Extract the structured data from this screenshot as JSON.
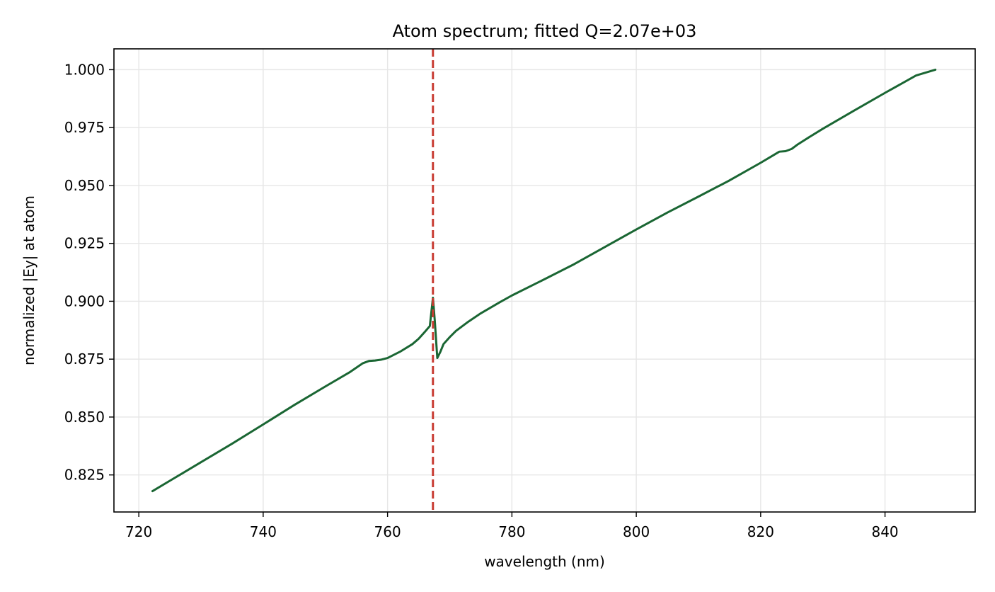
{
  "colors": {
    "series": "#1a6633",
    "marker_line": "#c83c32",
    "grid": "#e6e6e6",
    "axes": "#000000",
    "background": "#ffffff"
  },
  "chart_data": {
    "type": "line",
    "title": "Atom spectrum; fitted Q=2.07e+03",
    "xlabel": "wavelength (nm)",
    "ylabel": "normalized |Ey| at atom",
    "xlim": [
      716,
      854.5
    ],
    "ylim": [
      0.809,
      1.009
    ],
    "grid": true,
    "x_ticks": [
      720,
      740,
      760,
      780,
      800,
      820,
      840
    ],
    "x_tick_labels": [
      "720",
      "740",
      "760",
      "780",
      "800",
      "820",
      "840"
    ],
    "y_ticks": [
      0.825,
      0.85,
      0.875,
      0.9,
      0.925,
      0.95,
      0.975,
      1.0
    ],
    "y_tick_labels": [
      "0.825",
      "0.850",
      "0.875",
      "0.900",
      "0.925",
      "0.950",
      "0.975",
      "1.000"
    ],
    "vertical_line": {
      "x": 767.3,
      "style": "dashed"
    },
    "series": [
      {
        "x": [
          722.2,
          725,
          730,
          735,
          740,
          745,
          750,
          754,
          756,
          757,
          758,
          759,
          760,
          762,
          764,
          765,
          766,
          766.8,
          767.3,
          767.6,
          768,
          768.5,
          769,
          770,
          771,
          773,
          775,
          778,
          780,
          785,
          790,
          795,
          800,
          805,
          810,
          815,
          820,
          822,
          823,
          824,
          825,
          826,
          828,
          830,
          835,
          840,
          845,
          848.1
        ],
        "y": [
          0.818,
          0.8225,
          0.8305,
          0.8385,
          0.8468,
          0.8552,
          0.8632,
          0.8695,
          0.8732,
          0.8742,
          0.8744,
          0.8748,
          0.8755,
          0.8782,
          0.8815,
          0.8838,
          0.8868,
          0.8893,
          0.9015,
          0.8915,
          0.8755,
          0.8782,
          0.8815,
          0.8845,
          0.8872,
          0.8912,
          0.8948,
          0.8995,
          0.9025,
          0.9092,
          0.916,
          0.9235,
          0.931,
          0.9383,
          0.9452,
          0.9522,
          0.9598,
          0.963,
          0.9646,
          0.9648,
          0.9658,
          0.9678,
          0.9712,
          0.9745,
          0.9823,
          0.99,
          0.9975,
          1.0
        ]
      }
    ]
  }
}
